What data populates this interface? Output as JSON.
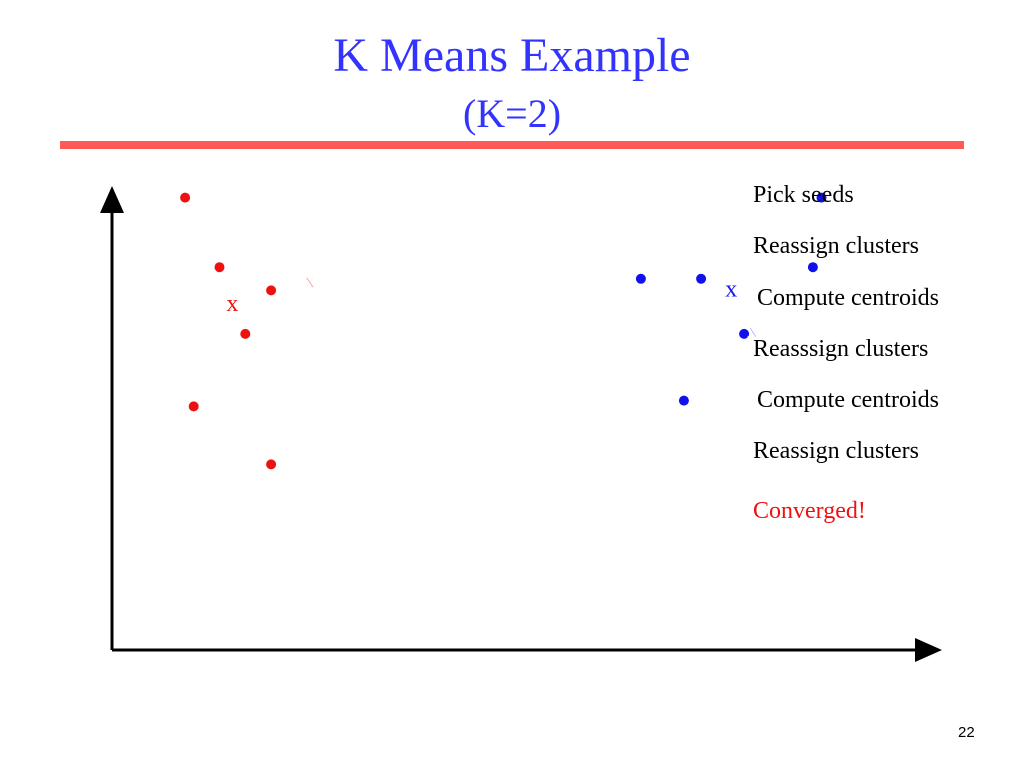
{
  "slide": {
    "title": "K Means Example",
    "subtitle": "(K=2)",
    "page_number": "22"
  },
  "steps": [
    "Pick seeds",
    "Reassign clusters",
    "Compute centroids",
    "Reasssign clusters",
    "Compute centroids",
    "Reassign clusters",
    "Converged!"
  ],
  "colors": {
    "title": "#3333ff",
    "rule": "#ff5a55",
    "cluster_red": "#ee1111",
    "cluster_blue": "#1111ee",
    "old_red_centroid": "#f4a0a0",
    "old_blue_centroid": "#a8b0f4",
    "converged": "#ee1111"
  },
  "clusters": {
    "red": {
      "color": "#ee1111",
      "centroid_marker": "x",
      "points": [
        [
          0.85,
          7.8
        ],
        [
          1.25,
          6.6
        ],
        [
          1.85,
          6.2
        ],
        [
          1.55,
          5.45
        ],
        [
          0.95,
          4.2
        ],
        [
          1.85,
          3.2
        ]
      ]
    },
    "blue": {
      "color": "#1111ee",
      "centroid_marker": "x",
      "points": [
        [
          6.15,
          6.4
        ],
        [
          6.85,
          6.4
        ],
        [
          8.15,
          6.6
        ],
        [
          8.25,
          7.8
        ],
        [
          7.35,
          5.45
        ],
        [
          6.65,
          4.3
        ]
      ]
    }
  },
  "centroids": {
    "red_current": {
      "x": 1.4,
      "y": 5.95,
      "label": "x",
      "color": "#ee1111"
    },
    "blue_current": {
      "x": 7.2,
      "y": 6.2,
      "label": "x",
      "color": "#1111ee"
    },
    "red_previous": {
      "x": 2.3,
      "y": 6.35,
      "label": "x",
      "color": "#f4a0a0"
    },
    "blue_previous": {
      "x": 7.45,
      "y": 5.5,
      "label": "x",
      "color": "#a8b0f4"
    }
  }
}
